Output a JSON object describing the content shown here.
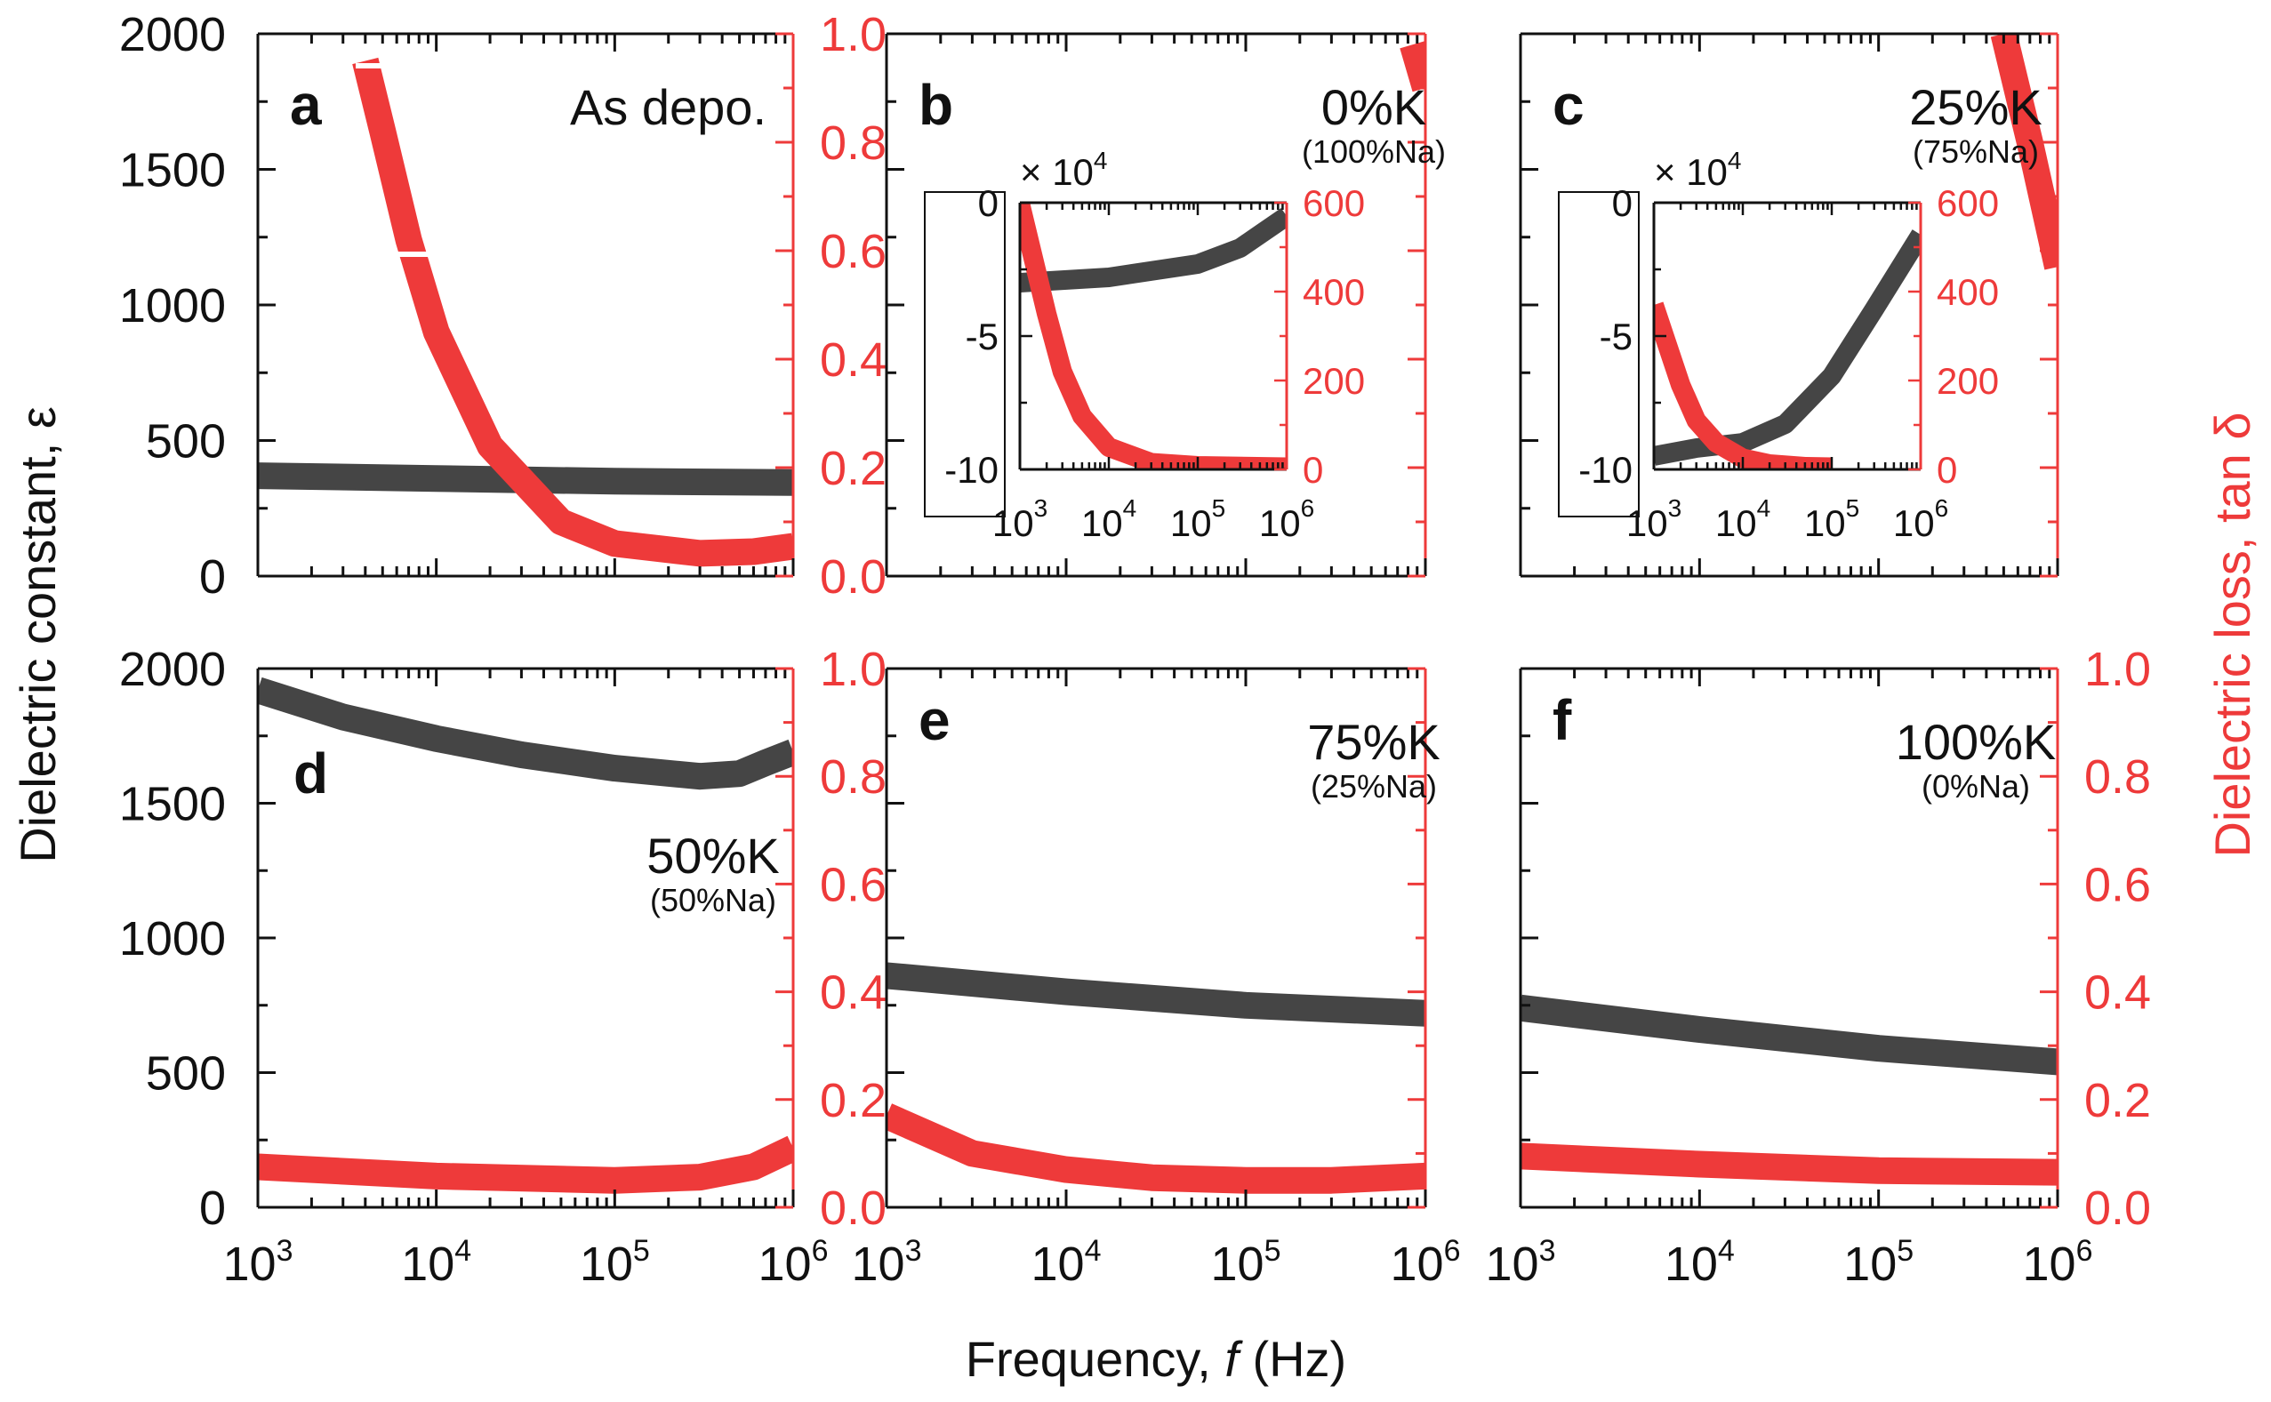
{
  "figure": {
    "xlabel_prefix": "Frequency, ",
    "xlabel_var": "f",
    "xlabel_unit": " (Hz)",
    "ylabel_left": "Dielectric constant,  ε",
    "ylabel_right": "Dielectric loss, tan δ",
    "colors": {
      "epsilon": "#454545",
      "loss": "#ee3a3a",
      "axis": "#111111"
    }
  },
  "chart_data": [
    {
      "panel": "a",
      "composition": "As depo.",
      "subtitle": "",
      "type": "line",
      "xscale": "log",
      "xlim": [
        1000,
        1000000
      ],
      "ylim_left": [
        0,
        2000
      ],
      "ylim_right": [
        0,
        1.0
      ],
      "yticks_left": [
        "0",
        "500",
        "1000",
        "1500",
        "2000"
      ],
      "yticks_right": [
        "0.0",
        "0.2",
        "0.4",
        "0.6",
        "0.8",
        "1.0"
      ],
      "series": [
        {
          "name": "Dielectric constant",
          "axis": "left",
          "x": [
            1000,
            10000,
            100000,
            1000000
          ],
          "y": [
            370,
            360,
            350,
            345
          ]
        },
        {
          "name": "Dielectric loss",
          "axis": "right",
          "x": [
            4000,
            5000,
            7000,
            10000,
            20000,
            50000,
            100000,
            300000,
            600000,
            1000000
          ],
          "y": [
            0.95,
            0.82,
            0.62,
            0.45,
            0.24,
            0.1,
            0.06,
            0.042,
            0.045,
            0.055
          ]
        }
      ]
    },
    {
      "panel": "b",
      "composition": "0%K",
      "subtitle": "(100%Na)",
      "type": "line",
      "xscale": "log",
      "xlim": [
        1000,
        1000000
      ],
      "ylim_left": [
        0,
        2000
      ],
      "ylim_right": [
        0,
        1.0
      ],
      "series": [
        {
          "name": "Dielectric loss",
          "axis": "right",
          "x": [
            850000,
            1000000
          ],
          "y": [
            0.98,
            0.9
          ]
        }
      ],
      "inset": {
        "multiplier": "× 10",
        "multiplier_exp": "4",
        "xlim": [
          1000,
          1000000
        ],
        "ylim_left": [
          -10,
          0
        ],
        "ylim_right": [
          0,
          600
        ],
        "yticks_left": [
          "0",
          "-5",
          "-10"
        ],
        "yticks_right": [
          "0",
          "200",
          "400",
          "600"
        ],
        "series": [
          {
            "name": "Dielectric constant (×10^4)",
            "axis": "left",
            "x": [
              1000,
              10000,
              100000,
              300000,
              1000000
            ],
            "y": [
              -3.0,
              -2.8,
              -2.3,
              -1.7,
              -0.5
            ]
          },
          {
            "name": "Dielectric loss",
            "axis": "right",
            "x": [
              1000,
              2000,
              3000,
              5000,
              10000,
              30000,
              100000,
              1000000
            ],
            "y": [
              600,
              350,
              220,
              120,
              50,
              15,
              8,
              5
            ]
          }
        ]
      }
    },
    {
      "panel": "c",
      "composition": "25%K",
      "subtitle": "(75%Na)",
      "type": "line",
      "xscale": "log",
      "xlim": [
        1000,
        1000000
      ],
      "ylim_left": [
        0,
        2000
      ],
      "ylim_right": [
        0,
        1.0
      ],
      "series": [
        {
          "name": "Dielectric loss",
          "axis": "right",
          "x": [
            500000,
            700000,
            1000000
          ],
          "y": [
            1.0,
            0.8,
            0.57
          ]
        }
      ],
      "inset": {
        "multiplier": "× 10",
        "multiplier_exp": "4",
        "xlim": [
          1000,
          1000000
        ],
        "ylim_left": [
          -10,
          0
        ],
        "ylim_right": [
          0,
          600
        ],
        "yticks_left": [
          "0",
          "-5",
          "-10"
        ],
        "yticks_right": [
          "0",
          "200",
          "400",
          "600"
        ],
        "series": [
          {
            "name": "Dielectric constant (×10^4)",
            "axis": "left",
            "x": [
              1000,
              3000,
              10000,
              30000,
              100000,
              300000,
              1000000
            ],
            "y": [
              -9.5,
              -9.2,
              -9.0,
              -8.3,
              -6.5,
              -4.0,
              -1.2
            ]
          },
          {
            "name": "Dielectric loss",
            "axis": "right",
            "x": [
              1000,
              2000,
              3000,
              5000,
              10000,
              20000,
              50000,
              100000
            ],
            "y": [
              370,
              190,
              110,
              60,
              25,
              12,
              6,
              5
            ]
          }
        ]
      }
    },
    {
      "panel": "d",
      "composition": "50%K",
      "subtitle": "(50%Na)",
      "type": "line",
      "xscale": "log",
      "xlim": [
        1000,
        1000000
      ],
      "ylim_left": [
        0,
        2000
      ],
      "ylim_right": [
        0,
        1.0
      ],
      "yticks_left": [
        "0",
        "500",
        "1000",
        "1500",
        "2000"
      ],
      "yticks_right": [
        "0.0",
        "0.2",
        "0.4",
        "0.6",
        "0.8",
        "1.0"
      ],
      "series": [
        {
          "name": "Dielectric constant",
          "axis": "left",
          "x": [
            1000,
            3000,
            10000,
            30000,
            100000,
            300000,
            500000,
            700000,
            1000000
          ],
          "y": [
            1920,
            1820,
            1740,
            1680,
            1630,
            1600,
            1610,
            1650,
            1690
          ]
        },
        {
          "name": "Dielectric loss",
          "axis": "right",
          "x": [
            1000,
            10000,
            100000,
            300000,
            600000,
            1000000
          ],
          "y": [
            0.075,
            0.058,
            0.05,
            0.056,
            0.075,
            0.11
          ]
        }
      ]
    },
    {
      "panel": "e",
      "composition": "75%K",
      "subtitle": "(25%Na)",
      "type": "line",
      "xscale": "log",
      "xlim": [
        1000,
        1000000
      ],
      "ylim_left": [
        0,
        2000
      ],
      "ylim_right": [
        0,
        1.0
      ],
      "series": [
        {
          "name": "Dielectric constant",
          "axis": "left",
          "x": [
            1000,
            10000,
            100000,
            1000000
          ],
          "y": [
            860,
            800,
            750,
            720
          ]
        },
        {
          "name": "Dielectric loss",
          "axis": "right",
          "x": [
            1000,
            3000,
            10000,
            30000,
            100000,
            300000,
            1000000
          ],
          "y": [
            0.17,
            0.1,
            0.07,
            0.055,
            0.05,
            0.05,
            0.058
          ]
        }
      ]
    },
    {
      "panel": "f",
      "composition": "100%K",
      "subtitle": "(0%Na)",
      "type": "line",
      "xscale": "log",
      "xlim": [
        1000,
        1000000
      ],
      "ylim_left": [
        0,
        2000
      ],
      "ylim_right": [
        0,
        1.0
      ],
      "yticks_right": [
        "0.0",
        "0.2",
        "0.4",
        "0.6",
        "0.8",
        "1.0"
      ],
      "series": [
        {
          "name": "Dielectric constant",
          "axis": "left",
          "x": [
            1000,
            10000,
            100000,
            1000000
          ],
          "y": [
            740,
            660,
            590,
            540
          ]
        },
        {
          "name": "Dielectric loss",
          "axis": "right",
          "x": [
            1000,
            10000,
            100000,
            1000000
          ],
          "y": [
            0.095,
            0.08,
            0.068,
            0.065
          ]
        }
      ]
    }
  ],
  "xtick_base": "10",
  "xtick_exps": [
    "3",
    "4",
    "5",
    "6"
  ]
}
